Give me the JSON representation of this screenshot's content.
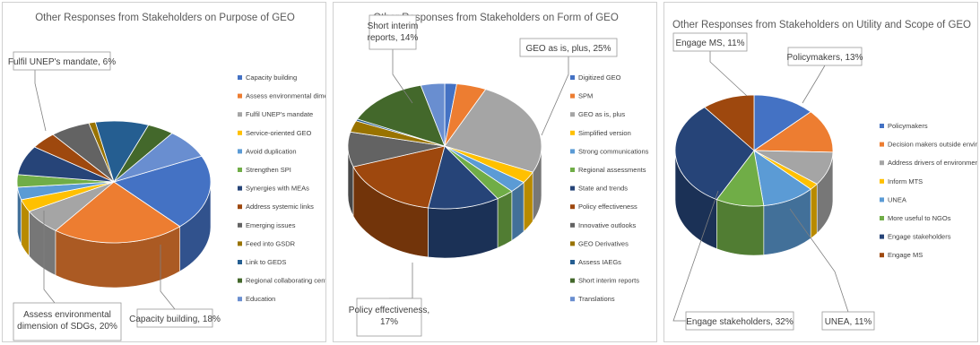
{
  "chart_data": [
    {
      "type": "pie",
      "style": "3d",
      "title": "Other Responses from Stakeholders on Purpose of GEO",
      "legend_position": "right",
      "categories": [
        "Capacity building",
        "Assess environmental dimension of SDGs",
        "Fulfil UNEP's mandate",
        "Service-oriented GEO",
        "Avoid duplication",
        "Strengthen SPI",
        "Synergies with MEAs",
        "Address systemic links",
        "Emerging issues",
        "Feed into GSDR",
        "Link to GEDS",
        "Regional collaborating centres",
        "Education"
      ],
      "values": [
        18,
        20,
        6,
        3,
        3,
        3,
        7,
        4,
        6,
        1,
        8,
        4,
        7
      ],
      "colors": [
        "#4472C4",
        "#ED7D31",
        "#A5A5A5",
        "#FFC000",
        "#5B9BD5",
        "#70AD47",
        "#264478",
        "#9E480E",
        "#636363",
        "#997300",
        "#255E91",
        "#43682B",
        "#698ED0"
      ],
      "data_labels": [
        {
          "text": "Capacity building, 18%"
        },
        {
          "text": "Assess environmental dimension of SDGs, 20%"
        },
        {
          "text": "Fulfil UNEP's mandate, 6%"
        }
      ]
    },
    {
      "type": "pie",
      "style": "3d",
      "title": "Other Responses from Stakeholders on Form of GEO",
      "legend_position": "right",
      "categories": [
        "Digitized GEO",
        "SPM",
        "GEO as is, plus",
        "Simplified version",
        "Strong communications",
        "Regional assessments",
        "State and trends",
        "Policy effectiveness",
        "Innovative outlooks",
        "GEO Derivatives",
        "Assess IAEGs",
        "Short interim reports",
        "Translations"
      ],
      "values": [
        2,
        5,
        25,
        3,
        3,
        3,
        12,
        17,
        9,
        3,
        0.5,
        14,
        4
      ],
      "colors": [
        "#4472C4",
        "#ED7D31",
        "#A5A5A5",
        "#FFC000",
        "#5B9BD5",
        "#70AD47",
        "#264478",
        "#9E480E",
        "#636363",
        "#997300",
        "#255E91",
        "#43682B",
        "#698ED0"
      ],
      "data_labels": [
        {
          "text": "Short interim reports, 14%"
        },
        {
          "text": "GEO as is, plus, 25%"
        },
        {
          "text": "Policy effectiveness, 17%"
        }
      ]
    },
    {
      "type": "pie",
      "style": "3d",
      "title": "Other Responses from Stakeholders on Utility and Scope of GEO",
      "legend_position": "right",
      "categories": [
        "Policymakers",
        "Decision makers outside environment",
        "Address drivers of environmental chan",
        "Inform MTS",
        "UNEA",
        "More useful to NGOs",
        "Engage stakeholders",
        "Engage MS"
      ],
      "values": [
        13,
        13,
        10,
        2,
        11,
        10,
        32,
        11
      ],
      "colors": [
        "#4472C4",
        "#ED7D31",
        "#A5A5A5",
        "#FFC000",
        "#5B9BD5",
        "#70AD47",
        "#264478",
        "#9E480E"
      ],
      "data_labels": [
        {
          "text": "Engage MS, 11%"
        },
        {
          "text": "Policymakers, 13%"
        },
        {
          "text": "Engage stakeholders, 32%"
        },
        {
          "text": "UNEA, 11%"
        }
      ]
    }
  ]
}
